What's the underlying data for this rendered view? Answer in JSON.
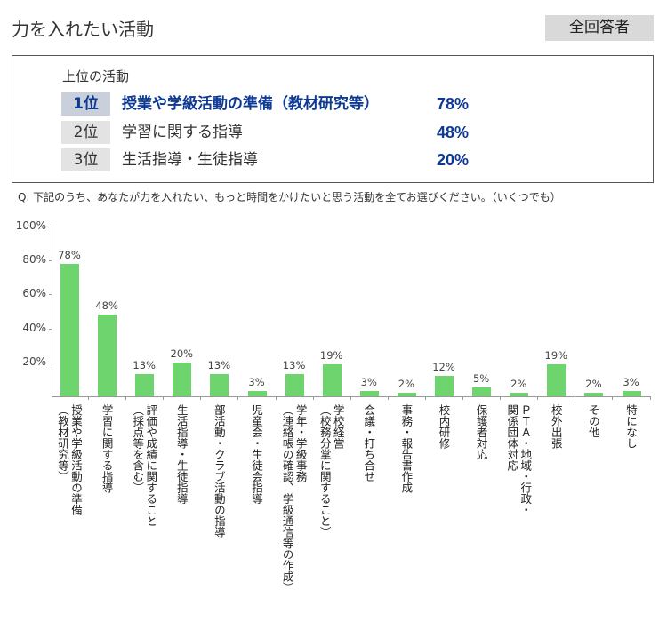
{
  "header": {
    "title": "力を入れたい活動",
    "badge": "全回答者"
  },
  "summary": {
    "title": "上位の活動",
    "ranks": [
      {
        "rank": "1位",
        "name": "授業や学級活動の準備（教材研究等）",
        "pct": "78%"
      },
      {
        "rank": "2位",
        "name": "学習に関する指導",
        "pct": "48%"
      },
      {
        "rank": "3位",
        "name": "生活指導・生徒指導",
        "pct": "20%"
      }
    ]
  },
  "question": "Q. 下記のうち、あなたが力を入れたい、もっと時間をかけたいと思う活動を全てお選びください。（いくつでも）",
  "colors": {
    "bar": "#6dd46e",
    "accent": "#0f3a94"
  },
  "chart_data": {
    "type": "bar",
    "ylim": [
      0,
      100
    ],
    "yticks": [
      "20%",
      "40%",
      "60%",
      "80%",
      "100%"
    ],
    "ytick_values": [
      20,
      40,
      60,
      80,
      100
    ],
    "categories": [
      [
        "授業や学級活動の準備",
        "（教材研究等）"
      ],
      [
        "学習に関する指導"
      ],
      [
        "評価や成績に関すること",
        "（採点等を含む）"
      ],
      [
        "生活指導・生徒指導"
      ],
      [
        "部活動・クラブ活動の指導"
      ],
      [
        "児童会・生徒会指導"
      ],
      [
        "学年・学級事務",
        "（連絡帳の確認、学級通信等の作成）"
      ],
      [
        "学校経営",
        "（校務分掌に関すること）"
      ],
      [
        "会議・打ち合せ"
      ],
      [
        "事務・報告書作成"
      ],
      [
        "校内研修"
      ],
      [
        "保護者対応"
      ],
      [
        "ＰＴＡ・地域・行政・",
        "関係団体対応"
      ],
      [
        "校外出張"
      ],
      [
        "その他"
      ],
      [
        "特になし"
      ]
    ],
    "values": [
      78,
      48,
      13,
      20,
      13,
      3,
      13,
      19,
      3,
      2,
      12,
      5,
      2,
      19,
      2,
      3
    ],
    "labels": [
      "78%",
      "48%",
      "13%",
      "20%",
      "13%",
      "3%",
      "13%",
      "19%",
      "3%",
      "2%",
      "12%",
      "5%",
      "2%",
      "19%",
      "2%",
      "3%"
    ]
  }
}
